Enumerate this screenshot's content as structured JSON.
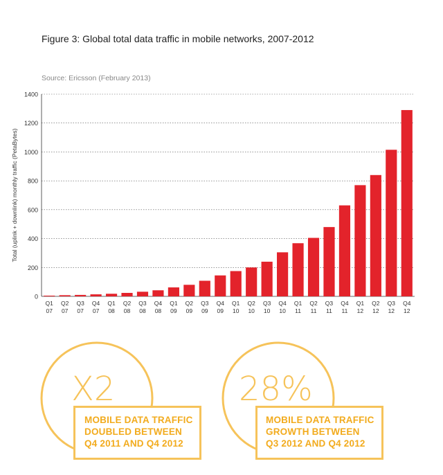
{
  "figure": {
    "title": "Figure 3: Global total data traffic in mobile networks, 2007-2012",
    "source": "Source: Ericsson (February 2013)"
  },
  "chart_data": {
    "type": "bar",
    "ylabel": "Total (uplink + downlink) monthly traffic (PetaBytes)",
    "xlabel": "",
    "ylim": [
      0,
      1400
    ],
    "yticks": [
      0,
      200,
      400,
      600,
      800,
      1000,
      1200,
      1400
    ],
    "grid": true,
    "bar_color": "#e3232b",
    "categories": [
      [
        "Q1",
        "07"
      ],
      [
        "Q2",
        "07"
      ],
      [
        "Q3",
        "07"
      ],
      [
        "Q4",
        "07"
      ],
      [
        "Q1",
        "08"
      ],
      [
        "Q2",
        "08"
      ],
      [
        "Q3",
        "08"
      ],
      [
        "Q4",
        "08"
      ],
      [
        "Q1",
        "09"
      ],
      [
        "Q2",
        "09"
      ],
      [
        "Q3",
        "09"
      ],
      [
        "Q4",
        "09"
      ],
      [
        "Q1",
        "10"
      ],
      [
        "Q2",
        "10"
      ],
      [
        "Q3",
        "10"
      ],
      [
        "Q4",
        "10"
      ],
      [
        "Q1",
        "11"
      ],
      [
        "Q2",
        "11"
      ],
      [
        "Q3",
        "11"
      ],
      [
        "Q4",
        "11"
      ],
      [
        "Q1",
        "12"
      ],
      [
        "Q2",
        "12"
      ],
      [
        "Q3",
        "12"
      ],
      [
        "Q4",
        "12"
      ]
    ],
    "values": [
      5,
      8,
      10,
      14,
      18,
      24,
      32,
      42,
      62,
      80,
      108,
      145,
      175,
      200,
      240,
      305,
      368,
      405,
      480,
      630,
      770,
      840,
      1015,
      1290
    ]
  },
  "callouts": [
    {
      "value": "X2",
      "lines": [
        "MOBILE DATA TRAFFIC",
        "DOUBLED BETWEEN",
        "Q4 2011 AND Q4 2012"
      ]
    },
    {
      "value": "28%",
      "lines": [
        "MOBILE DATA TRAFFIC",
        "GROWTH BETWEEN",
        "Q3 2012 AND Q4 2012"
      ]
    }
  ],
  "accent_color": "#f6c35a",
  "callout_text_color": "#f2ab1d"
}
